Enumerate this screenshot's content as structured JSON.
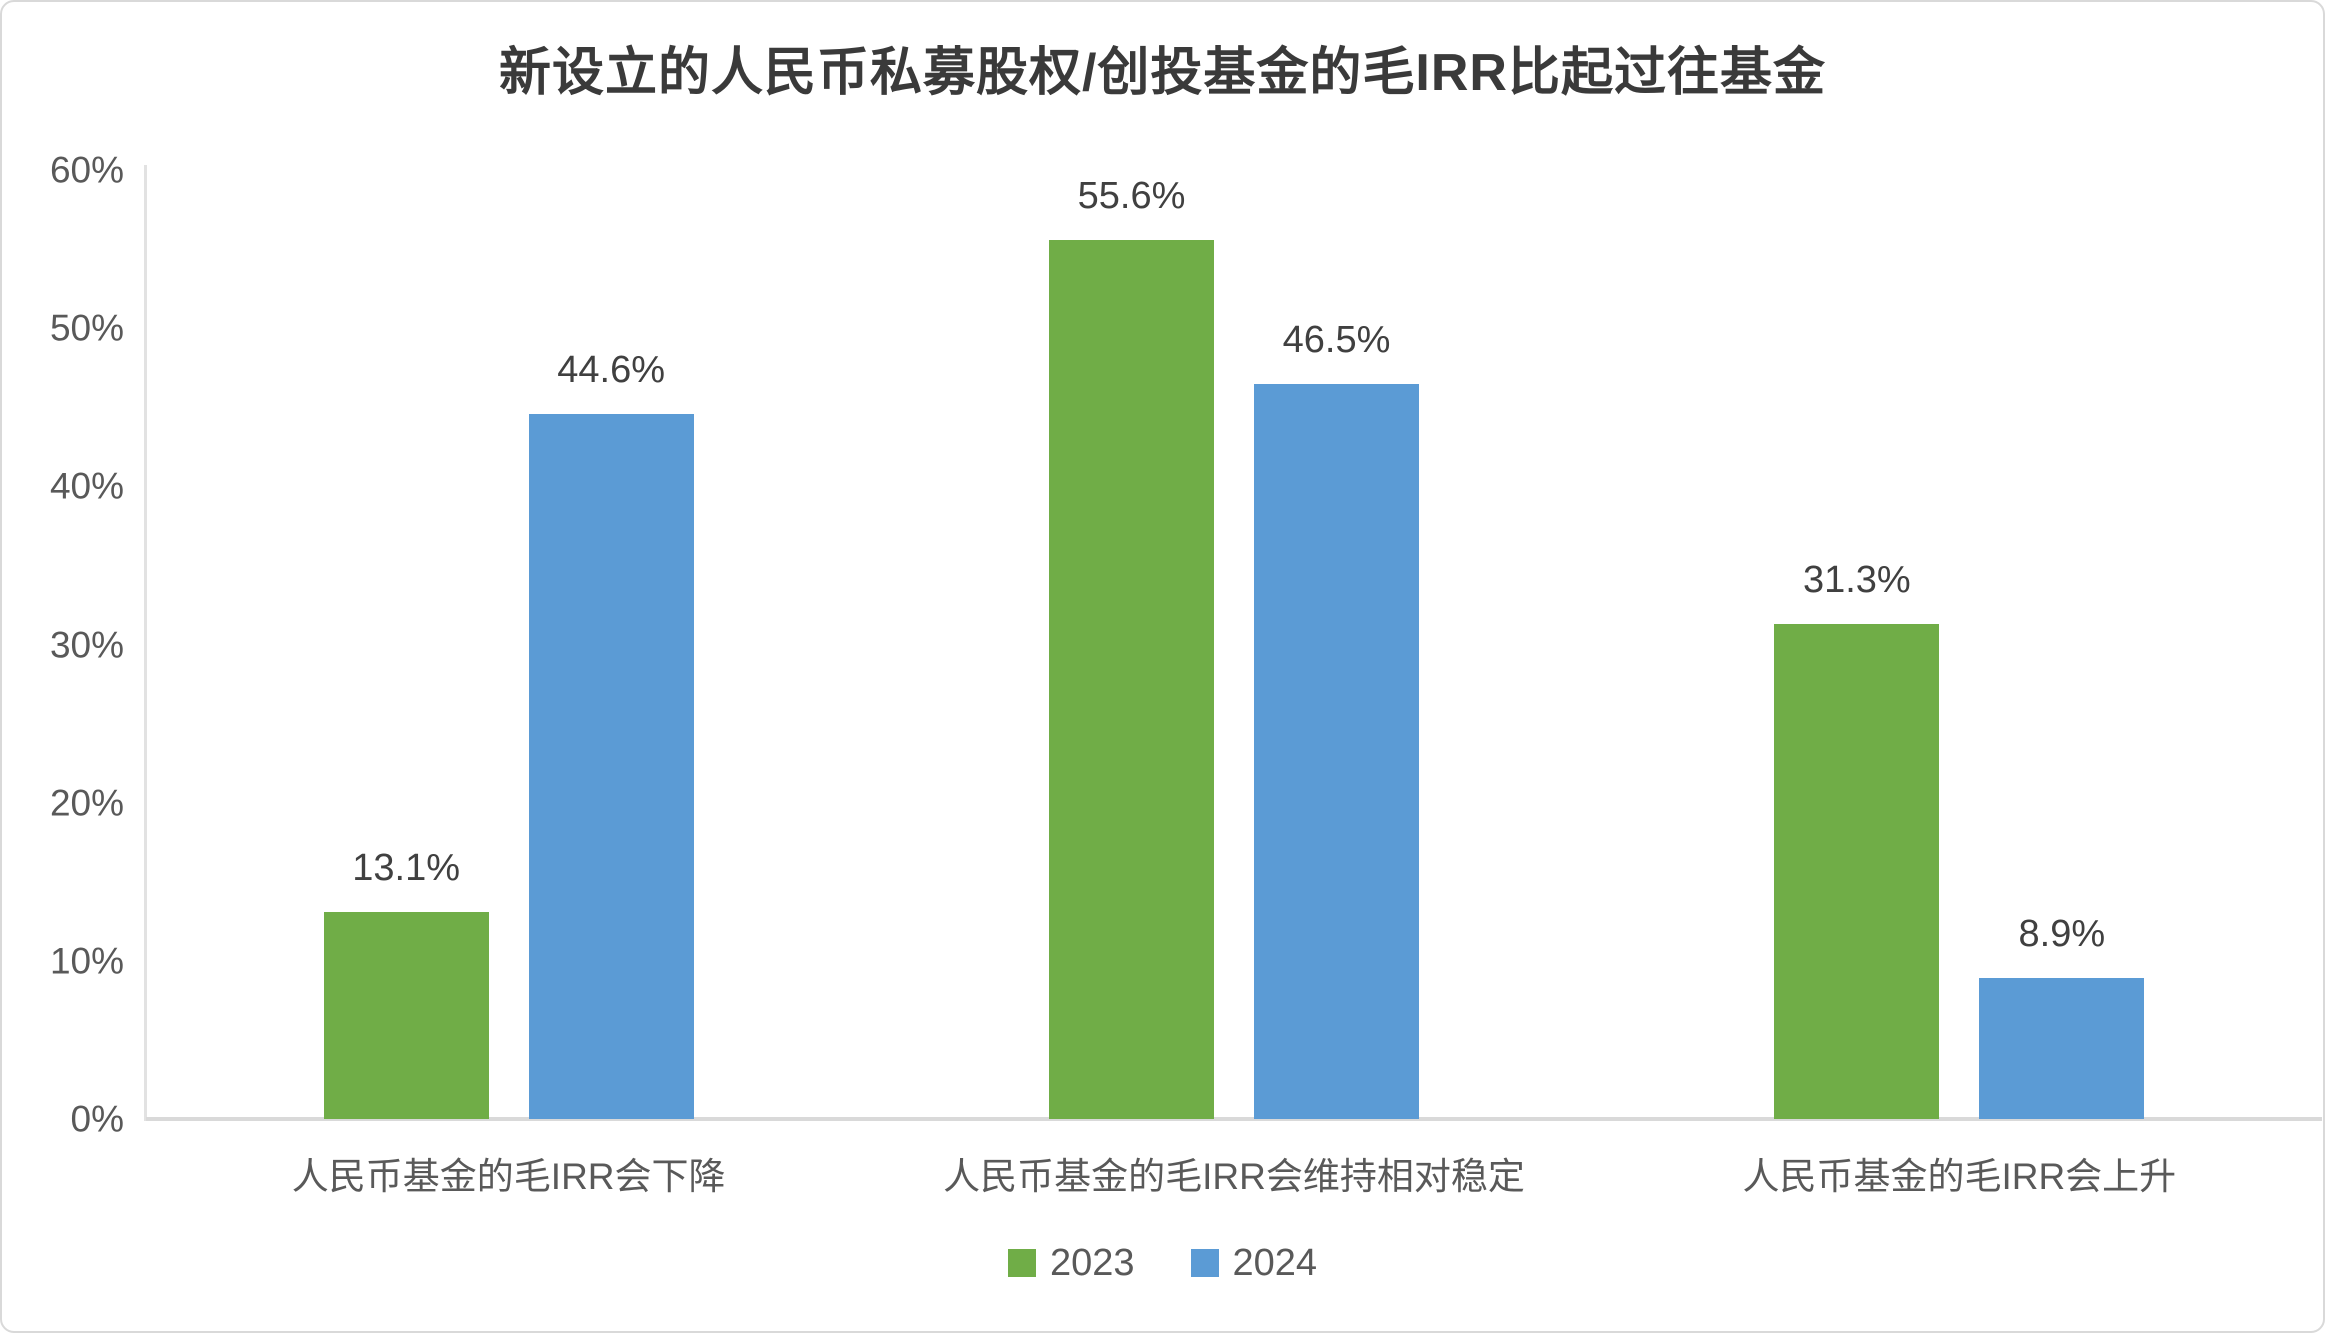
{
  "chart_data": {
    "type": "bar",
    "title": "新设立的人民币私募股权/创投基金的毛IRR比起过往基金",
    "categories": [
      "人民币基金的毛IRR会下降",
      "人民币基金的毛IRR会维持相对稳定",
      "人民币基金的毛IRR会上升"
    ],
    "series": [
      {
        "name": "2023",
        "color": "#70AD47",
        "values": [
          13.1,
          55.6,
          31.3
        ],
        "labels": [
          "13.1%",
          "55.6%",
          "31.3%"
        ]
      },
      {
        "name": "2024",
        "color": "#5B9BD5",
        "values": [
          44.6,
          46.5,
          8.9
        ],
        "labels": [
          "44.6%",
          "46.5%",
          "8.9%"
        ]
      }
    ],
    "xlabel": "",
    "ylabel": "",
    "ylim": [
      0,
      60
    ],
    "ytick_values": [
      0,
      10,
      20,
      30,
      40,
      50,
      60
    ],
    "ytick_labels": [
      "0%",
      "10%",
      "20%",
      "30%",
      "40%",
      "50%",
      "60%"
    ],
    "grid": false,
    "legend_position": "bottom",
    "axis_color": "#d9d9d9",
    "tick_text_color": "#595959",
    "label_text_color": "#404040",
    "title_text_color": "#3a3a3a"
  }
}
